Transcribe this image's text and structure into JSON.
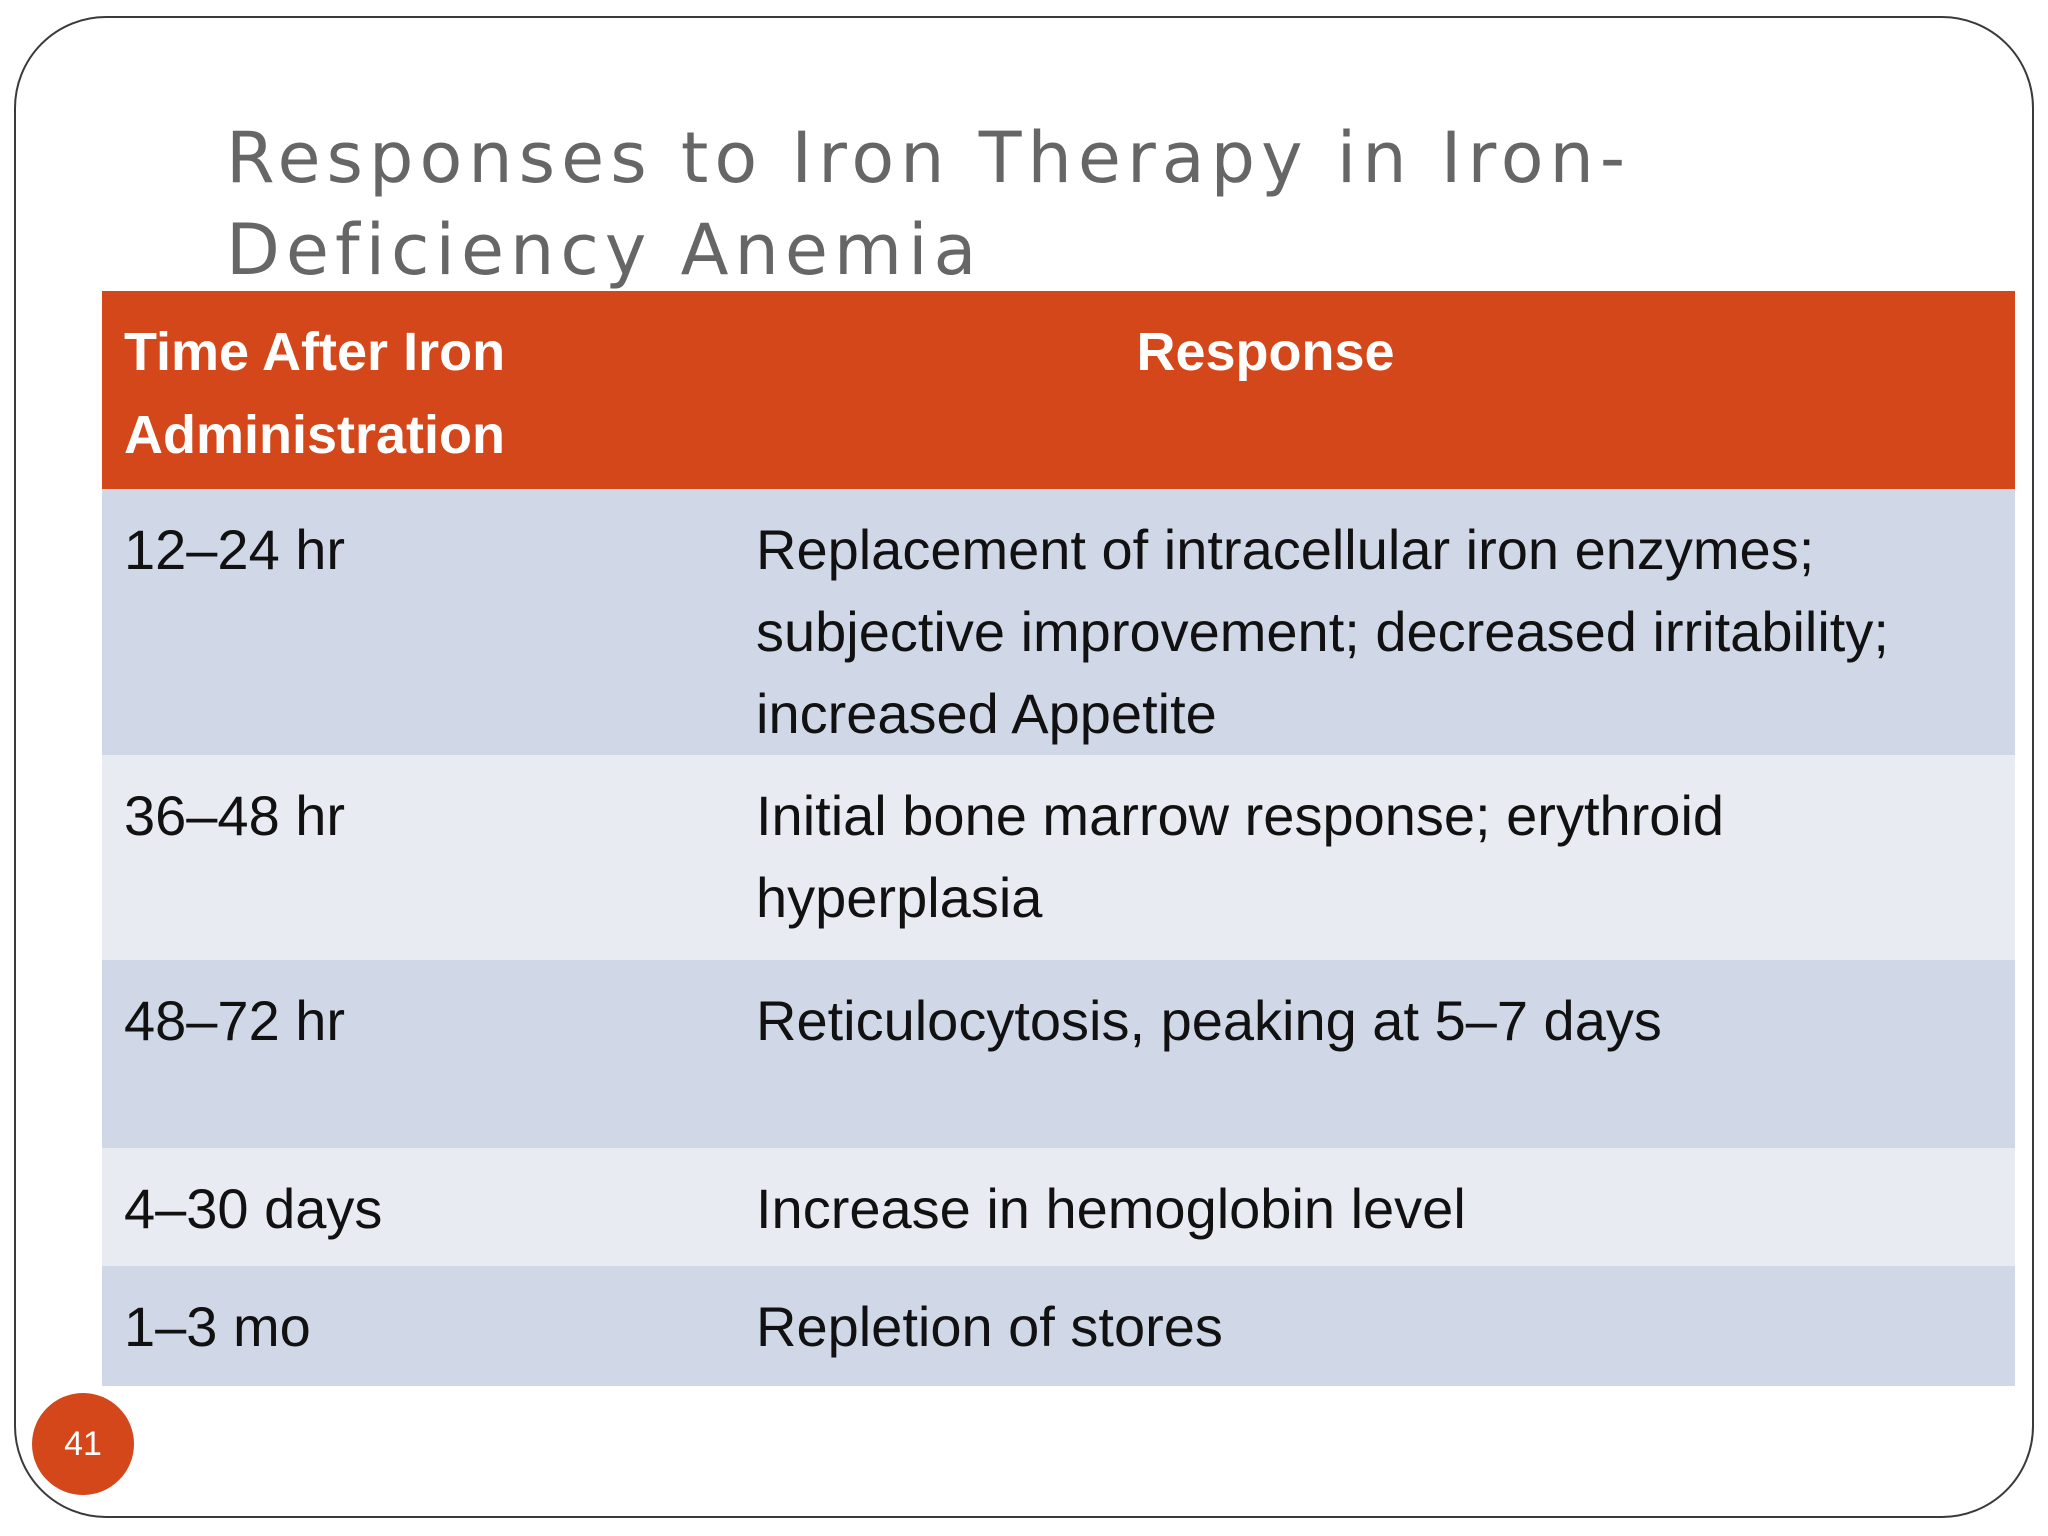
{
  "slide": {
    "title": "Responses to Iron Therapy in Iron-\nDeficiency Anemia",
    "page_number": "41",
    "accent_color": "#d4471a",
    "row_color_odd": "#d0d8e8",
    "row_color_even": "#e9ebf2"
  },
  "table": {
    "headers": {
      "time": "Time After Iron Administration",
      "response": "Response"
    },
    "rows": [
      {
        "time": "12–24 hr",
        "response": "Replacement of intracellular iron enzymes; subjective improvement; decreased irritability; increased Appetite"
      },
      {
        "time": "36–48 hr",
        "response": "Initial bone marrow response; erythroid hyperplasia"
      },
      {
        "time": "48–72 hr",
        "response": "Reticulocytosis, peaking at 5–7 days"
      },
      {
        "time": "4–30 days",
        "response": "Increase in hemoglobin level"
      },
      {
        "time": "1–3 mo",
        "response": "Repletion of stores"
      }
    ]
  }
}
